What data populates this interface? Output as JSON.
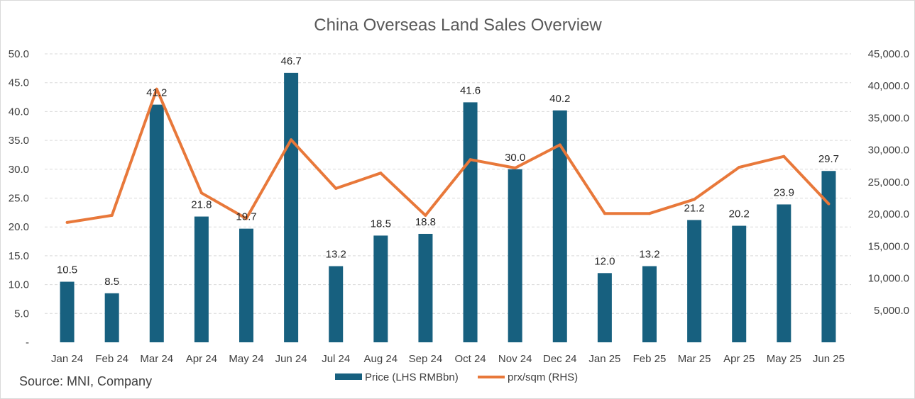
{
  "chart_data": {
    "type": "bar",
    "title": "China Overseas Land Sales Overview",
    "categories": [
      "Jan 24",
      "Feb 24",
      "Mar 24",
      "Apr 24",
      "May 24",
      "Jun 24",
      "Jul 24",
      "Aug 24",
      "Sep 24",
      "Oct 24",
      "Nov 24",
      "Dec 24",
      "Jan 25",
      "Feb 25",
      "Mar 25",
      "Apr 25",
      "May 25",
      "Jun 25"
    ],
    "series": [
      {
        "name": "Price (LHS RMBbn)",
        "type": "bar",
        "axis": "left",
        "color": "#17607f",
        "values": [
          10.5,
          8.5,
          41.2,
          21.8,
          19.7,
          46.7,
          13.2,
          18.5,
          18.8,
          41.6,
          30.0,
          40.2,
          12.0,
          13.2,
          21.2,
          20.2,
          23.9,
          29.7
        ],
        "labels": [
          "10.5",
          "8.5",
          "41.2",
          "21.8",
          "19.7",
          "46.7",
          "13.2",
          "18.5",
          "18.8",
          "41.6",
          "30.0",
          "40.2",
          "12.0",
          "13.2",
          "21.2",
          "20.2",
          "23.9",
          "29.7"
        ]
      },
      {
        "name": "prx/sqm (RHS)",
        "type": "line",
        "axis": "right",
        "color": "#e8783a",
        "values": [
          18700,
          19800,
          39500,
          23300,
          19300,
          31600,
          24000,
          26400,
          19800,
          28500,
          27200,
          30800,
          20100,
          20100,
          22300,
          27300,
          29000,
          21600
        ]
      }
    ],
    "y_left": {
      "min": 0,
      "max": 50,
      "step": 5,
      "tick_labels": [
        "-",
        "5.0",
        "10.0",
        "15.0",
        "20.0",
        "25.0",
        "30.0",
        "35.0",
        "40.0",
        "45.0",
        "50.0"
      ]
    },
    "y_right": {
      "min": 0,
      "max": 45000,
      "step": 5000,
      "tick_labels": [
        "5,000.0",
        "10,000.0",
        "15,000.0",
        "20,000.0",
        "25,000.0",
        "30,000.0",
        "35,000.0",
        "40,000.0",
        "45,000.0"
      ]
    },
    "grid": true,
    "legend_position": "bottom-center"
  },
  "source": "Source: MNI, Company"
}
